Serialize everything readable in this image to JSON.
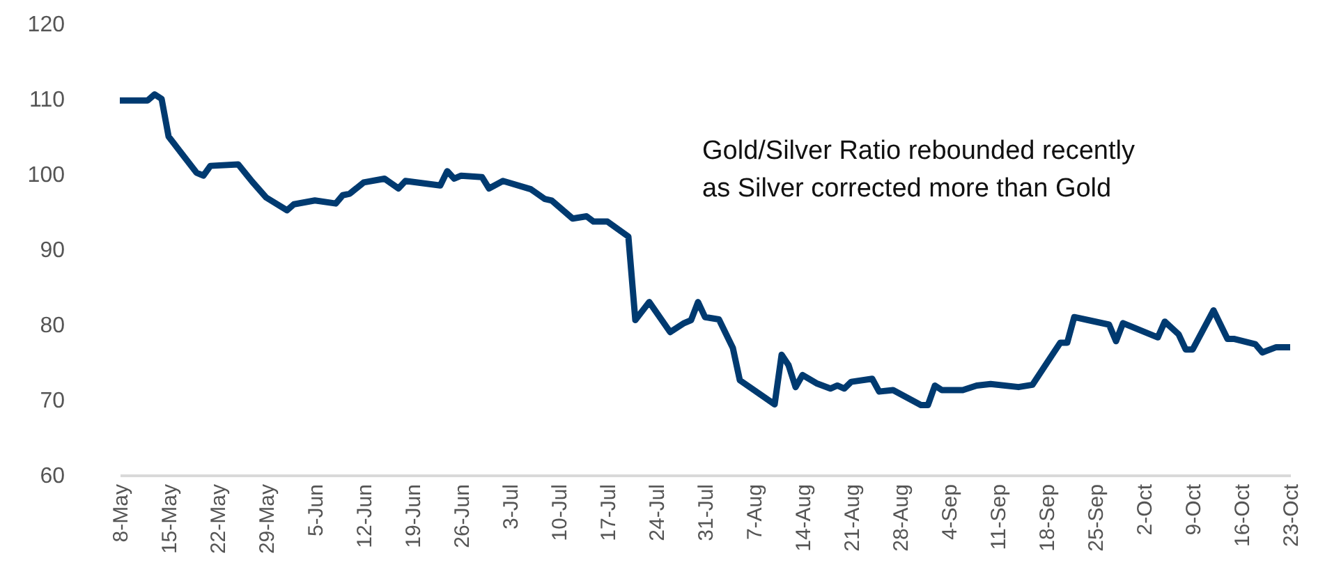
{
  "chart_data": {
    "type": "line",
    "x": [
      "--05-08",
      "--05-12",
      "--05-13",
      "--05-14",
      "--05-15",
      "--05-19",
      "--05-20",
      "--05-21",
      "--05-25",
      "--05-27",
      "--05-29",
      "--06-01",
      "--06-02",
      "--06-05",
      "--06-08",
      "--06-09",
      "--06-10",
      "--06-12",
      "--06-15",
      "--06-17",
      "--06-18",
      "--06-23",
      "--06-24",
      "--06-25",
      "--06-26",
      "--06-29",
      "--06-30",
      "--07-02",
      "--07-06",
      "--07-08",
      "--07-09",
      "--07-12",
      "--07-14",
      "--07-15",
      "--07-17",
      "--07-20",
      "--07-21",
      "--07-23",
      "--07-26",
      "--07-28",
      "--07-29",
      "--07-30",
      "--07-31",
      "--08-02",
      "--08-04",
      "--08-05",
      "--08-10",
      "--08-11",
      "--08-12",
      "--08-13",
      "--08-14",
      "--08-16",
      "--08-18",
      "--08-19",
      "--08-20",
      "--08-21",
      "--08-24",
      "--08-25",
      "--08-27",
      "--08-31",
      "--09-01",
      "--09-02",
      "--09-03",
      "--09-06",
      "--09-08",
      "--09-10",
      "--09-14",
      "--09-16",
      "--09-20",
      "--09-21",
      "--09-22",
      "--09-24",
      "--09-27",
      "--09-28",
      "--09-29",
      "--10-04",
      "--10-05",
      "--10-07",
      "--10-08",
      "--10-09",
      "--10-12",
      "--10-14",
      "--10-15",
      "--10-18",
      "--10-19",
      "--10-21",
      "--10-23"
    ],
    "series": [
      {
        "color": "#003a70",
        "values": [
          109.8,
          109.8,
          110.6,
          110,
          105,
          100.2,
          99.8,
          101.1,
          101.3,
          99,
          96.9,
          95.2,
          96,
          96.5,
          96.1,
          97.2,
          97.4,
          98.9,
          99.4,
          98.1,
          99.1,
          98.5,
          100.4,
          99.4,
          99.8,
          99.6,
          98.1,
          99.1,
          98,
          96.7,
          96.5,
          94.1,
          94.4,
          93.7,
          93.7,
          91.7,
          80.6,
          83,
          79,
          80.2,
          80.6,
          83,
          81,
          80.7,
          76.9,
          72.6,
          69.4,
          76,
          74.6,
          71.7,
          73.3,
          72.2,
          71.5,
          71.9,
          71.5,
          72.4,
          72.8,
          71.1,
          71.3,
          69.3,
          69.3,
          71.9,
          71.3,
          71.3,
          71.9,
          72.1,
          71.7,
          72,
          77.6,
          77.6,
          81,
          80.6,
          80,
          77.8,
          80.2,
          78.3,
          80.4,
          78.7,
          76.7,
          76.7,
          81.9,
          78.1,
          78.1,
          77.4,
          76.3,
          77,
          77
        ]
      }
    ],
    "xlim": [
      "--05-08",
      "--10-23"
    ],
    "xticks": [
      {
        "value": "--05-08",
        "label": "8-May"
      },
      {
        "value": "--05-15",
        "label": "15-May"
      },
      {
        "value": "--05-22",
        "label": "22-May"
      },
      {
        "value": "--05-29",
        "label": "29-May"
      },
      {
        "value": "--06-05",
        "label": "5-Jun"
      },
      {
        "value": "--06-12",
        "label": "12-Jun"
      },
      {
        "value": "--06-19",
        "label": "19-Jun"
      },
      {
        "value": "--06-26",
        "label": "26-Jun"
      },
      {
        "value": "--07-03",
        "label": "3-Jul"
      },
      {
        "value": "--07-10",
        "label": "10-Jul"
      },
      {
        "value": "--07-17",
        "label": "17-Jul"
      },
      {
        "value": "--07-24",
        "label": "24-Jul"
      },
      {
        "value": "--07-31",
        "label": "31-Jul"
      },
      {
        "value": "--08-07",
        "label": "7-Aug"
      },
      {
        "value": "--08-14",
        "label": "14-Aug"
      },
      {
        "value": "--08-21",
        "label": "21-Aug"
      },
      {
        "value": "--08-28",
        "label": "28-Aug"
      },
      {
        "value": "--09-04",
        "label": "4-Sep"
      },
      {
        "value": "--09-11",
        "label": "11-Sep"
      },
      {
        "value": "--09-18",
        "label": "18-Sep"
      },
      {
        "value": "--09-25",
        "label": "25-Sep"
      },
      {
        "value": "--10-02",
        "label": "2-Oct"
      },
      {
        "value": "--10-09",
        "label": "9-Oct"
      },
      {
        "value": "--10-16",
        "label": "16-Oct"
      },
      {
        "value": "--10-23",
        "label": "23-Oct"
      }
    ],
    "ylim": [
      60,
      120
    ],
    "yticks": [
      60,
      70,
      80,
      90,
      100,
      110,
      120
    ],
    "marker": "none",
    "line_style": "solid",
    "annotations": [
      "Gold/Silver Ratio rebounded recently\nas Silver corrected more than Gold"
    ]
  }
}
